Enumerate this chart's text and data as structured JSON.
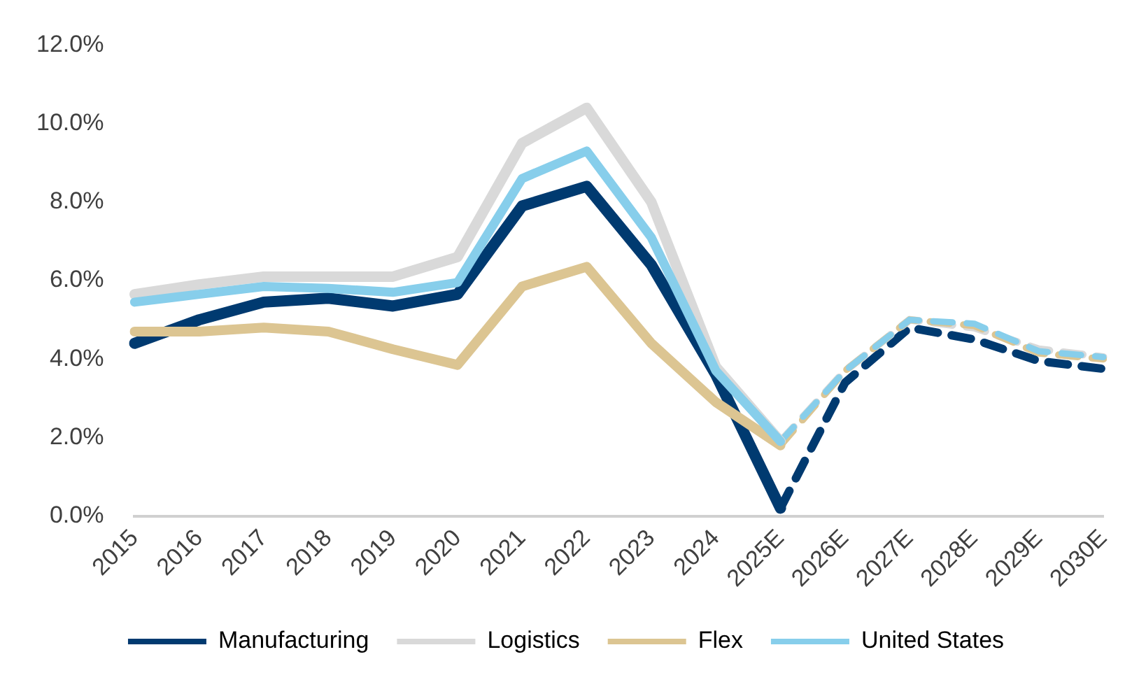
{
  "chart_data": {
    "type": "line",
    "categories": [
      "2015",
      "2016",
      "2017",
      "2018",
      "2019",
      "2020",
      "2021",
      "2022",
      "2023",
      "2024",
      "2025E",
      "2026E",
      "2027E",
      "2028E",
      "2029E",
      "2030E"
    ],
    "series": [
      {
        "name": "Manufacturing",
        "color": "#003a70",
        "line_style": "solid",
        "values": [
          4.4,
          5.0,
          5.45,
          5.55,
          5.35,
          5.65,
          7.9,
          8.4,
          6.4,
          3.6,
          0.2,
          null,
          null,
          null,
          null,
          null
        ]
      },
      {
        "name": "Logistics",
        "color": "#d9d9d9",
        "line_style": "solid",
        "values": [
          5.65,
          5.9,
          6.1,
          6.1,
          6.1,
          6.6,
          9.5,
          10.4,
          8.0,
          3.8,
          1.9,
          null,
          null,
          null,
          null,
          null
        ]
      },
      {
        "name": "Flex",
        "color": "#dcc592",
        "line_style": "solid",
        "values": [
          4.7,
          4.7,
          4.8,
          4.7,
          4.25,
          3.85,
          5.85,
          6.35,
          4.4,
          2.9,
          1.8,
          null,
          null,
          null,
          null,
          null
        ]
      },
      {
        "name": "United States",
        "color": "#87ceeb",
        "line_style": "solid",
        "values": [
          5.45,
          5.65,
          5.85,
          5.8,
          5.7,
          5.95,
          8.6,
          9.3,
          7.1,
          3.7,
          1.9,
          null,
          null,
          null,
          null,
          null
        ]
      },
      {
        "color": "#003a70",
        "line_style": "dashed",
        "values": [
          null,
          null,
          null,
          null,
          null,
          null,
          null,
          null,
          null,
          null,
          0.2,
          3.4,
          4.8,
          4.5,
          3.95,
          3.75
        ]
      },
      {
        "color": "#d9d9d9",
        "line_style": "dashed",
        "values": [
          null,
          null,
          null,
          null,
          null,
          null,
          null,
          null,
          null,
          null,
          1.9,
          3.7,
          5.0,
          4.8,
          4.25,
          4.05
        ]
      },
      {
        "color": "#dcc592",
        "line_style": "dashed",
        "values": [
          null,
          null,
          null,
          null,
          null,
          null,
          null,
          null,
          null,
          null,
          1.8,
          3.7,
          5.0,
          4.85,
          4.15,
          4.0
        ]
      },
      {
        "color": "#87ceeb",
        "line_style": "dashed",
        "values": [
          null,
          null,
          null,
          null,
          null,
          null,
          null,
          null,
          null,
          null,
          1.9,
          3.7,
          5.0,
          4.9,
          4.2,
          4.05
        ]
      }
    ],
    "ylim": [
      0,
      12
    ],
    "yticks": [
      {
        "value": 0,
        "label": "0.0%"
      },
      {
        "value": 2,
        "label": "2.0%"
      },
      {
        "value": 4,
        "label": "4.0%"
      },
      {
        "value": 6,
        "label": "6.0%"
      },
      {
        "value": 8,
        "label": "8.0%"
      },
      {
        "value": 10,
        "label": "10.0%"
      },
      {
        "value": 12,
        "label": "12.0%"
      }
    ],
    "grid": false,
    "legend": "bottom",
    "marker": "none"
  }
}
